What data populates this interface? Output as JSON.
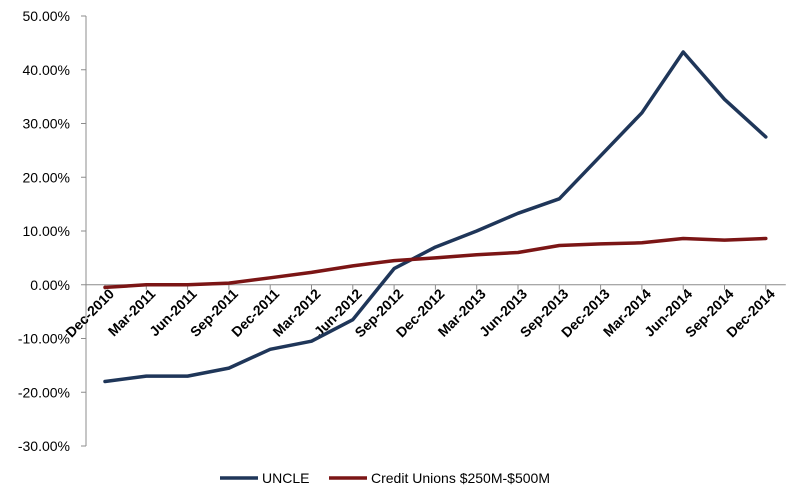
{
  "chart_data": {
    "type": "line",
    "title": "",
    "xlabel": "",
    "ylabel": "",
    "categories": [
      "Dec-2010",
      "Mar-2011",
      "Jun-2011",
      "Sep-2011",
      "Dec-2011",
      "Mar-2012",
      "Jun-2012",
      "Sep-2012",
      "Dec-2012",
      "Mar-2013",
      "Jun-2013",
      "Sep-2013",
      "Dec-2013",
      "Mar-2014",
      "Jun-2014",
      "Sep-2014",
      "Dec-2014"
    ],
    "ylim": [
      -30,
      50
    ],
    "yticks": [
      "50.00%",
      "40.00%",
      "30.00%",
      "20.00%",
      "10.00%",
      "0.00%",
      "-10.00%",
      "-20.00%",
      "-30.00%"
    ],
    "ytick_values": [
      50,
      40,
      30,
      20,
      10,
      0,
      -10,
      -20,
      -30
    ],
    "legend_position": "bottom",
    "grid": false,
    "series": [
      {
        "name": "UNCLE",
        "color": "#1f3659",
        "values": [
          -18.0,
          -17.0,
          -17.0,
          -15.5,
          -12.0,
          -10.5,
          -6.5,
          3.0,
          7.0,
          10.0,
          13.3,
          16.0,
          24.0,
          32.0,
          43.3,
          34.5,
          27.5
        ]
      },
      {
        "name": "Credit Unions $250M-$500M",
        "color": "#7b1515",
        "values": [
          -0.5,
          0.0,
          0.0,
          0.3,
          1.3,
          2.3,
          3.5,
          4.5,
          5.0,
          5.6,
          6.0,
          7.3,
          7.6,
          7.8,
          8.6,
          8.3,
          8.6
        ]
      }
    ]
  }
}
